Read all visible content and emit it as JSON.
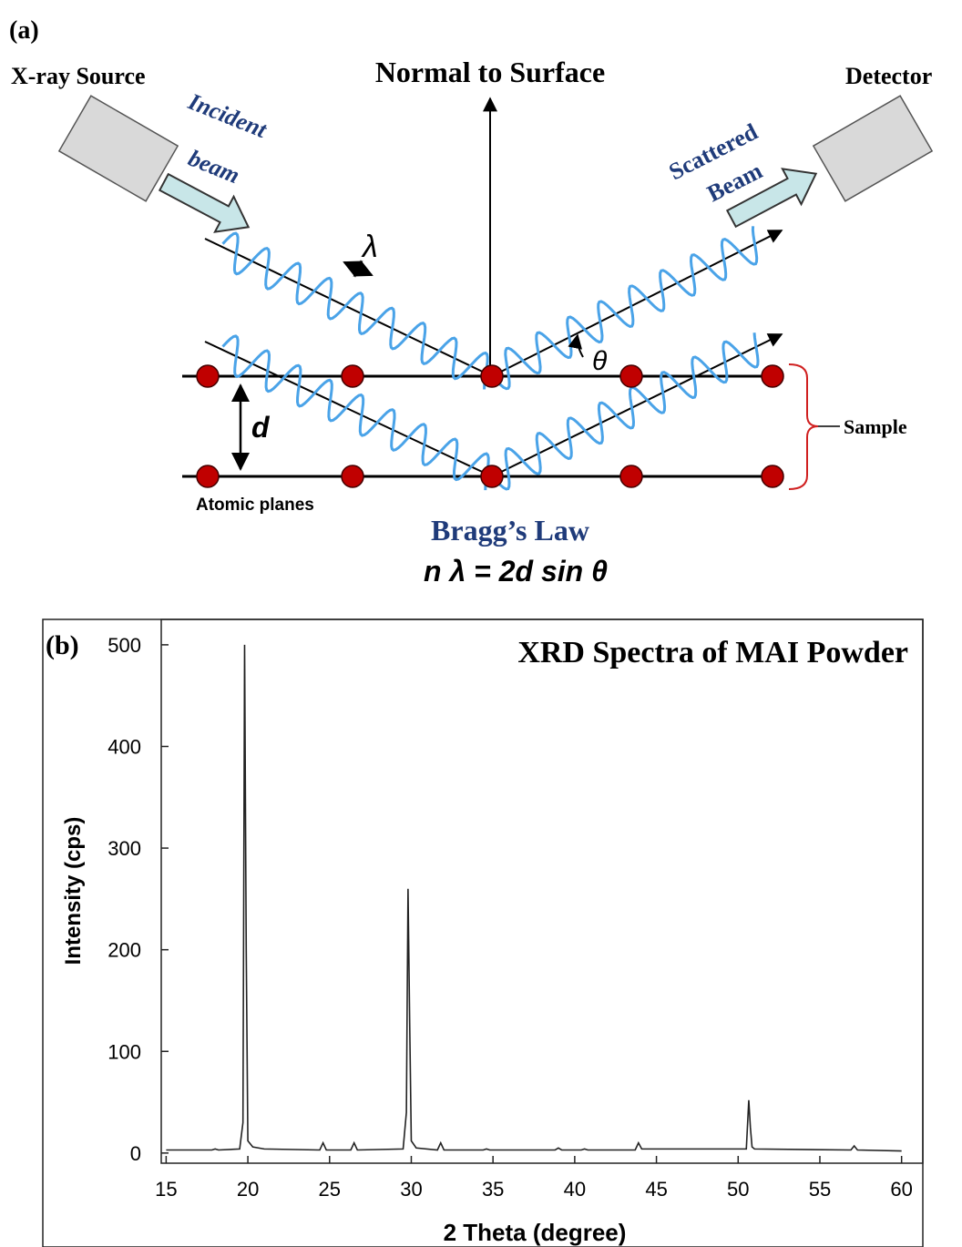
{
  "diagram": {
    "panel_label": "(a)",
    "source_label": "X-ray Source",
    "normal_label": "Normal to Surface",
    "detector_label": "Detector",
    "incident_label": [
      "Incident",
      "beam"
    ],
    "scattered_label": [
      "Scattered",
      "Beam"
    ],
    "wavelength_symbol": "λ",
    "angle_symbol": "θ",
    "spacing_symbol": "d",
    "sample_label": "Sample",
    "planes_label": "Atomic planes",
    "law_title": "Bragg’s Law",
    "law_equation": "n λ = 2d sin θ"
  },
  "chart_data": {
    "type": "line",
    "panel_label": "(b)",
    "title": "XRD Spectra of MAI Powder",
    "x_label": "2 Theta (degree)",
    "y_label": "Intensity (cps)",
    "x": [
      15,
      17.8,
      18,
      18.2,
      19.5,
      19.7,
      19.8,
      19.9,
      20.0,
      20.3,
      21,
      24.4,
      24.6,
      24.8,
      26.3,
      26.5,
      26.7,
      29.5,
      29.7,
      29.8,
      29.9,
      30.0,
      30.3,
      31.6,
      31.8,
      32.0,
      34.4,
      34.6,
      34.8,
      38.8,
      39.0,
      39.2,
      40.4,
      40.6,
      40.8,
      43.7,
      43.9,
      44.1,
      50.5,
      50.65,
      50.75,
      50.85,
      51.0,
      56.9,
      57.1,
      57.3,
      60
    ],
    "series": [
      {
        "color": "#222222",
        "values": [
          3,
          3,
          4,
          3,
          4,
          30,
          500,
          200,
          12,
          6,
          4,
          3,
          10,
          3,
          3,
          10,
          3,
          4,
          40,
          260,
          130,
          12,
          5,
          3,
          10,
          3,
          3,
          4,
          3,
          3,
          5,
          3,
          3,
          4,
          3,
          3,
          10,
          4,
          4,
          52,
          25,
          6,
          4,
          3,
          7,
          3,
          2
        ]
      }
    ],
    "xlim": [
      14.7,
      61.3
    ],
    "xticks": [
      15,
      20,
      25,
      30,
      35,
      40,
      45,
      50,
      55,
      60
    ],
    "ylim": [
      -10,
      525
    ],
    "yticks": [
      0,
      100,
      200,
      300,
      400,
      500
    ]
  }
}
